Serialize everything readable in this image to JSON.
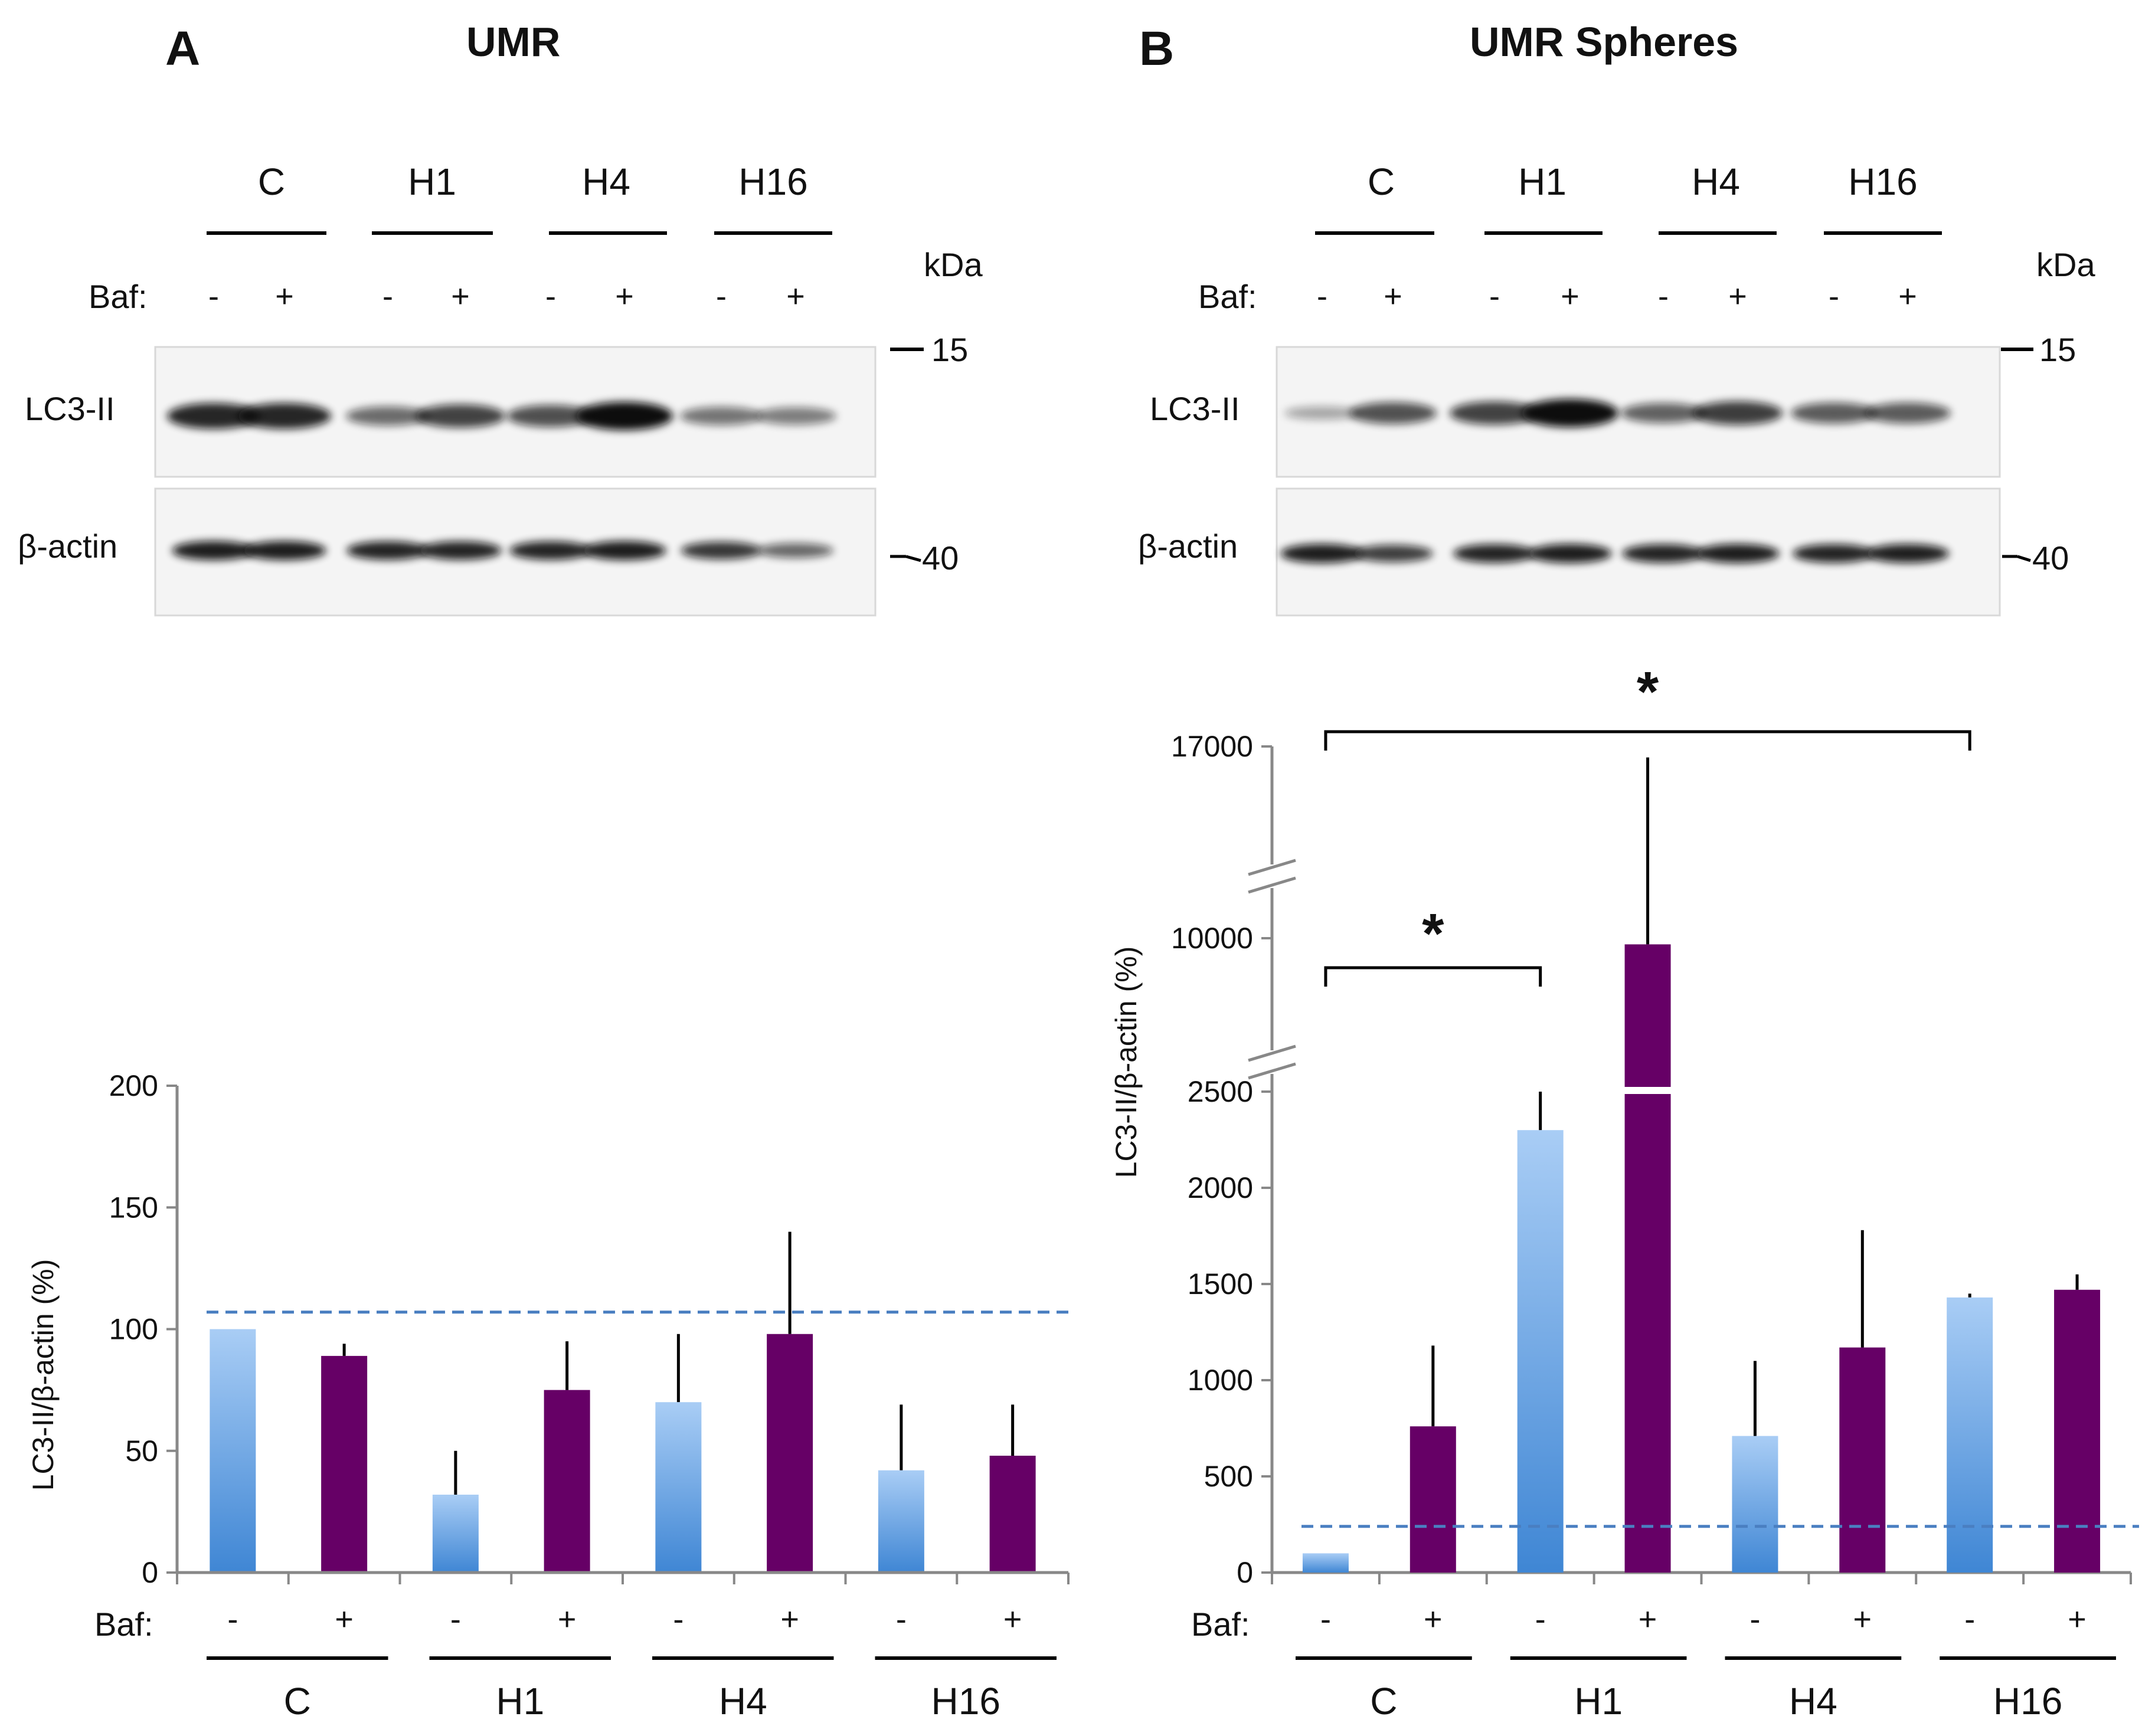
{
  "panels": [
    {
      "letter": "A",
      "title": "UMR",
      "groups": [
        "C",
        "H1",
        "H4",
        "H16"
      ],
      "baf_label": "Baf:",
      "baf_signs": [
        "-",
        "+",
        "-",
        "+",
        "-",
        "+",
        "-",
        "+"
      ],
      "kda_label": "kDa",
      "marker_top": "15",
      "marker_bottom": "40",
      "blot_labels": [
        "LC3-II",
        "β-actin"
      ],
      "lc3_intensity": [
        0.85,
        0.85,
        0.45,
        0.7,
        0.62,
        1.0,
        0.4,
        0.35
      ],
      "actin_intensity": [
        0.9,
        0.9,
        0.85,
        0.85,
        0.85,
        0.9,
        0.75,
        0.45
      ]
    },
    {
      "letter": "B",
      "title": "UMR Spheres",
      "groups": [
        "C",
        "H1",
        "H4",
        "H16"
      ],
      "baf_label": "Baf:",
      "baf_signs": [
        "-",
        "+",
        "-",
        "+",
        "-",
        "+",
        "-",
        "+"
      ],
      "kda_label": "kDa",
      "marker_top": "15",
      "marker_bottom": "40",
      "blot_labels": [
        "LC3-II",
        "β-actin"
      ],
      "lc3_intensity": [
        0.1,
        0.6,
        0.7,
        1.0,
        0.5,
        0.72,
        0.55,
        0.55
      ],
      "actin_intensity": [
        0.9,
        0.7,
        0.85,
        0.9,
        0.85,
        0.9,
        0.85,
        0.88
      ]
    }
  ],
  "chart_data": [
    {
      "type": "bar",
      "panel": "A",
      "ylabel": "LC3-II/β-actin (%)",
      "ylim": [
        0,
        200
      ],
      "yticks": [
        0,
        50,
        100,
        150,
        200
      ],
      "categories": [
        "C -",
        "C +",
        "H1 -",
        "H1 +",
        "H4 -",
        "H4 +",
        "H16 -",
        "H16 +"
      ],
      "values": [
        100,
        89,
        32,
        75,
        70,
        98,
        42,
        48
      ],
      "errors": [
        0,
        5,
        18,
        20,
        28,
        42,
        27,
        21
      ],
      "baf": [
        "-",
        "+",
        "-",
        "+",
        "-",
        "+",
        "-",
        "+"
      ],
      "groups": [
        "C",
        "H1",
        "H4",
        "H16"
      ],
      "baf_label": "Baf:",
      "reference_line": 107,
      "colors": {
        "minus": "#5b9bd5",
        "plus": "#660066",
        "ref": "#4a7fc1"
      }
    },
    {
      "type": "bar",
      "panel": "B",
      "ylabel": "LC3-II/β-actin (%)",
      "axis_segments": [
        [
          0,
          2500
        ],
        [
          2500,
          10000
        ],
        [
          10000,
          17000
        ]
      ],
      "yticks": [
        0,
        500,
        1000,
        1500,
        2000,
        2500,
        10000,
        17000
      ],
      "categories": [
        "C -",
        "C +",
        "H1 -",
        "H1 +",
        "H4 -",
        "H4 +",
        "H16 -",
        "H16 +"
      ],
      "values": [
        100,
        760,
        2300,
        9700,
        710,
        1170,
        1430,
        1470
      ],
      "errors": [
        0,
        420,
        200,
        6900,
        390,
        610,
        20,
        80
      ],
      "baf": [
        "-",
        "+",
        "-",
        "+",
        "-",
        "+",
        "-",
        "+"
      ],
      "groups": [
        "C",
        "H1",
        "H4",
        "H16"
      ],
      "baf_label": "Baf:",
      "reference_line": 240,
      "significance": [
        {
          "from": "C -",
          "to": "H1 -",
          "label": "*"
        },
        {
          "from": "C -",
          "to": "H16 -",
          "label": "*"
        }
      ],
      "colors": {
        "minus": "#5b9bd5",
        "plus": "#660066",
        "ref": "#4a7fc1"
      }
    }
  ]
}
